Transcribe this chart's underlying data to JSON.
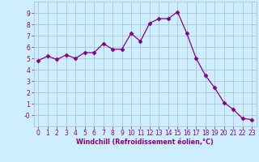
{
  "x": [
    0,
    1,
    2,
    3,
    4,
    5,
    6,
    7,
    8,
    9,
    10,
    11,
    12,
    13,
    14,
    15,
    16,
    17,
    18,
    19,
    20,
    21,
    22,
    23
  ],
  "y": [
    4.8,
    5.2,
    4.9,
    5.3,
    5.0,
    5.5,
    5.5,
    6.3,
    5.8,
    5.8,
    7.2,
    6.5,
    8.1,
    8.5,
    8.5,
    9.1,
    7.2,
    5.0,
    3.5,
    2.4,
    1.1,
    0.5,
    -0.3,
    -0.4
  ],
  "line_color": "#880088",
  "marker": "D",
  "marker_size": 2.5,
  "bg_color": "#cceeff",
  "grid_color": "#aabbcc",
  "xlabel": "Windchill (Refroidissement éolien,°C)",
  "xlim": [
    -0.5,
    23.5
  ],
  "ylim": [
    -1,
    10
  ],
  "yticks": [
    0,
    1,
    2,
    3,
    4,
    5,
    6,
    7,
    8,
    9
  ],
  "ytick_labels": [
    "-0",
    "1",
    "2",
    "3",
    "4",
    "5",
    "6",
    "7",
    "8",
    "9"
  ],
  "xticks": [
    0,
    1,
    2,
    3,
    4,
    5,
    6,
    7,
    8,
    9,
    10,
    11,
    12,
    13,
    14,
    15,
    16,
    17,
    18,
    19,
    20,
    21,
    22,
    23
  ],
  "xlabel_fontsize": 5.8,
  "tick_fontsize": 5.5
}
